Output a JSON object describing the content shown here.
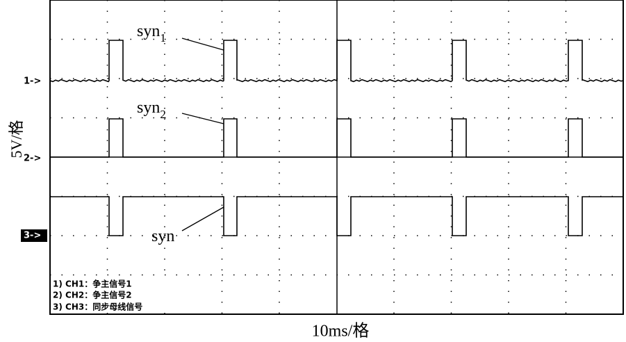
{
  "y_axis_label": "5V/格",
  "x_axis_label": "10ms/格",
  "channel_markers": [
    "1->",
    "2->",
    "3->"
  ],
  "annotations": [
    {
      "text": "syn",
      "subscript": "1"
    },
    {
      "text": "syn",
      "subscript": "2"
    },
    {
      "text": "syn"
    }
  ],
  "legend": [
    "1) CH1：争主信号1",
    "2) CH2：争主信号2",
    "3) CH3：同步母线信号"
  ]
}
